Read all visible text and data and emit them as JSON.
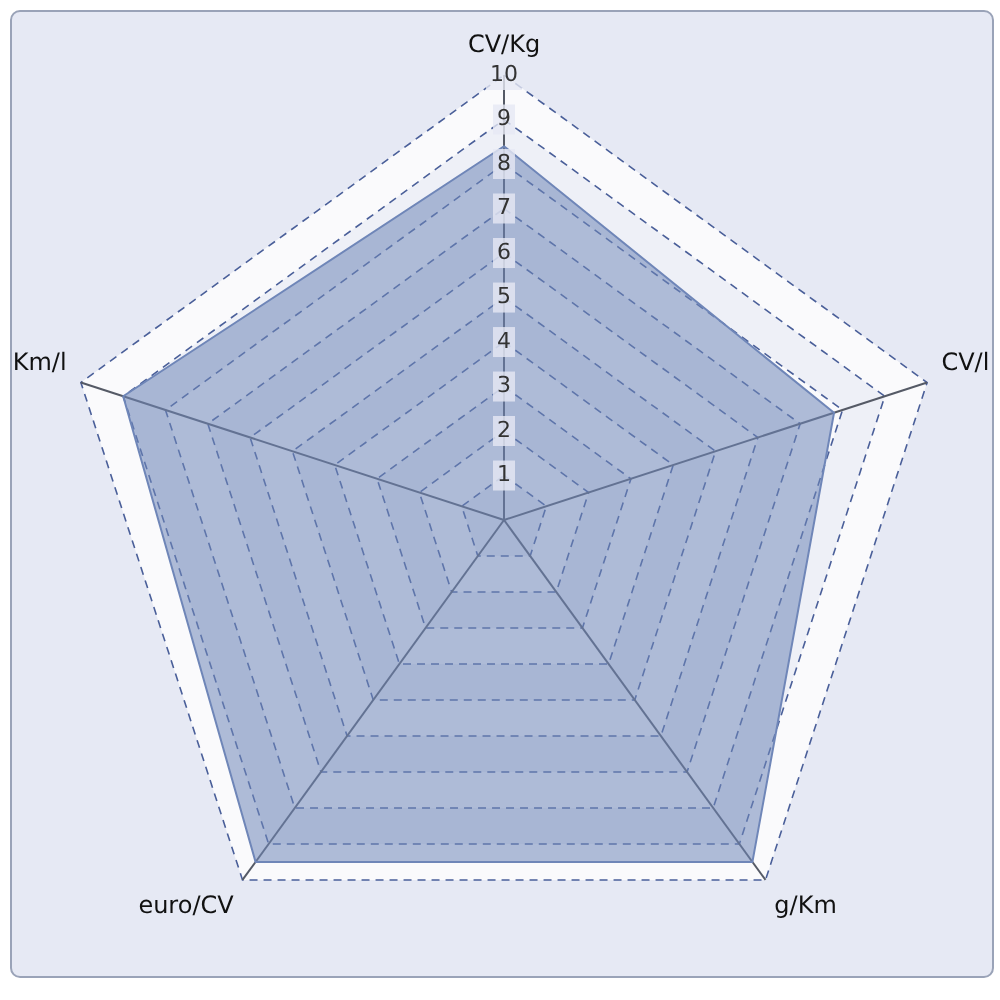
{
  "chart_data": {
    "type": "radar",
    "categories": [
      "CV/Kg",
      "CV/l",
      "g/Km",
      "euro/CV",
      "Km/l"
    ],
    "series": [
      {
        "color": "#6f86b8",
        "values": [
          8.4,
          7.8,
          9.5,
          9.5,
          9.0
        ]
      }
    ],
    "ylim": [
      0,
      10
    ],
    "yticks": [
      1,
      2,
      3,
      4,
      5,
      6,
      7,
      8,
      9,
      10
    ],
    "grid": true,
    "line_style": "dashed",
    "legend": false
  }
}
